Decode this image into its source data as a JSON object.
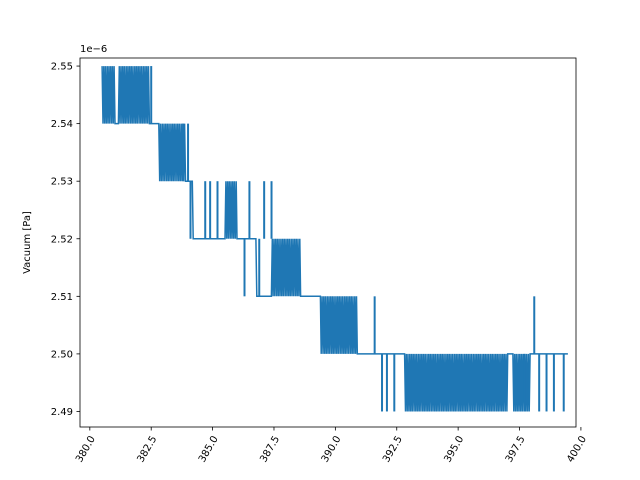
{
  "chart_data": {
    "type": "line",
    "title": "",
    "xlabel": "",
    "ylabel": "Vacuum [Pa]",
    "y_offset_label": "1e−6",
    "xlim": [
      379.6,
      399.8
    ],
    "ylim": [
      2.4873,
      2.5514
    ],
    "grid": false,
    "color": "#1f77b4",
    "x_ticks": [
      380.0,
      382.5,
      385.0,
      387.5,
      390.0,
      392.5,
      395.0,
      397.5,
      400.0
    ],
    "x_tick_labels": [
      "380.0",
      "382.5",
      "385.0",
      "387.5",
      "390.0",
      "392.5",
      "395.0",
      "397.5",
      "400.0"
    ],
    "y_ticks": [
      2.49,
      2.5,
      2.51,
      2.52,
      2.53,
      2.54,
      2.55
    ],
    "y_tick_labels": [
      "2.49",
      "2.50",
      "2.51",
      "2.52",
      "2.53",
      "2.54",
      "2.55"
    ],
    "series": [
      {
        "x_start": 380.5,
        "x_end": 399.5,
        "base_levels": [
          {
            "from": 380.5,
            "to": 382.8,
            "level": 2.54
          },
          {
            "from": 382.8,
            "to": 384.2,
            "level": 2.53
          },
          {
            "from": 384.2,
            "to": 386.8,
            "level": 2.52
          },
          {
            "from": 386.8,
            "to": 389.4,
            "level": 2.51
          },
          {
            "from": 389.4,
            "to": 399.5,
            "level": 2.5
          }
        ],
        "spike_bands": [
          {
            "from": 380.5,
            "to": 381.0,
            "low": 2.54,
            "high": 2.55
          },
          {
            "from": 381.2,
            "to": 382.4,
            "low": 2.54,
            "high": 2.55
          },
          {
            "from": 382.8,
            "to": 383.9,
            "low": 2.53,
            "high": 2.54
          },
          {
            "from": 385.5,
            "to": 386.0,
            "low": 2.52,
            "high": 2.53
          },
          {
            "from": 387.4,
            "to": 388.6,
            "low": 2.51,
            "high": 2.52
          },
          {
            "from": 389.4,
            "to": 390.9,
            "low": 2.5,
            "high": 2.51
          },
          {
            "from": 392.8,
            "to": 397.0,
            "low": 2.49,
            "high": 2.5
          },
          {
            "from": 397.2,
            "to": 397.9,
            "low": 2.49,
            "high": 2.5
          }
        ],
        "spikes": [
          {
            "x": 382.5,
            "low": 2.54,
            "high": 2.55
          },
          {
            "x": 383.8,
            "low": 2.53,
            "high": 2.54
          },
          {
            "x": 384.0,
            "low": 2.53,
            "high": 2.54
          },
          {
            "x": 384.1,
            "low": 2.52,
            "high": 2.53
          },
          {
            "x": 384.7,
            "low": 2.52,
            "high": 2.53
          },
          {
            "x": 384.9,
            "low": 2.52,
            "high": 2.53
          },
          {
            "x": 385.2,
            "low": 2.52,
            "high": 2.53
          },
          {
            "x": 386.3,
            "low": 2.51,
            "high": 2.52
          },
          {
            "x": 386.5,
            "low": 2.52,
            "high": 2.53
          },
          {
            "x": 386.9,
            "low": 2.51,
            "high": 2.52
          },
          {
            "x": 387.1,
            "low": 2.52,
            "high": 2.53
          },
          {
            "x": 387.4,
            "low": 2.52,
            "high": 2.53
          },
          {
            "x": 391.6,
            "low": 2.5,
            "high": 2.51
          },
          {
            "x": 391.9,
            "low": 2.49,
            "high": 2.5
          },
          {
            "x": 392.1,
            "low": 2.49,
            "high": 2.5
          },
          {
            "x": 392.4,
            "low": 2.49,
            "high": 2.5
          },
          {
            "x": 397.7,
            "low": 2.49,
            "high": 2.5
          },
          {
            "x": 398.1,
            "low": 2.5,
            "high": 2.51
          },
          {
            "x": 398.3,
            "low": 2.49,
            "high": 2.5
          },
          {
            "x": 398.6,
            "low": 2.49,
            "high": 2.5
          },
          {
            "x": 398.9,
            "low": 2.49,
            "high": 2.5
          },
          {
            "x": 399.3,
            "low": 2.49,
            "high": 2.5
          }
        ]
      }
    ]
  }
}
